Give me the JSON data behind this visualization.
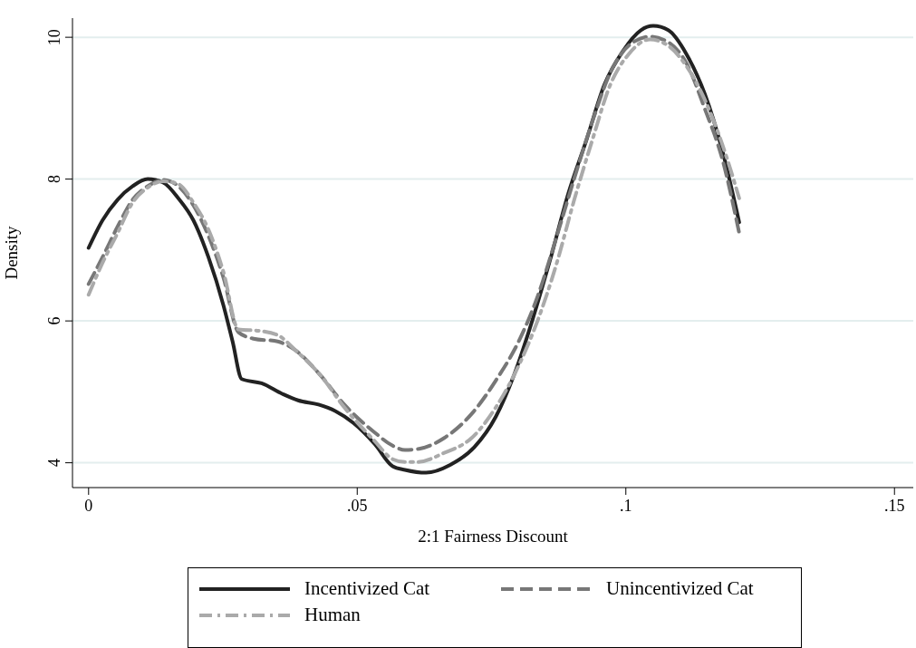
{
  "chart_data": {
    "type": "line",
    "xlabel": "2:1 Fairness Discount",
    "ylabel": "Density",
    "xlim": [
      -0.003,
      0.1535
    ],
    "ylim": [
      3.65,
      10.27
    ],
    "xticks": [
      {
        "value": 0,
        "label": "0"
      },
      {
        "value": 0.05,
        "label": ".05"
      },
      {
        "value": 0.1,
        "label": ".1"
      },
      {
        "value": 0.15,
        "label": ".15"
      }
    ],
    "yticks": [
      4,
      6,
      8,
      10
    ],
    "grid": "y",
    "legend": "bottom",
    "series": [
      {
        "name": "Incentivized Cat",
        "color": "#222222",
        "line_style": "solid",
        "x": [
          0,
          0.0026,
          0.0054,
          0.0082,
          0.011,
          0.0139,
          0.0167,
          0.0195,
          0.0223,
          0.0251,
          0.0268,
          0.0285,
          0.0322,
          0.0361,
          0.039,
          0.0428,
          0.0459,
          0.0493,
          0.0533,
          0.0566,
          0.0589,
          0.0628,
          0.0673,
          0.0718,
          0.0758,
          0.0792,
          0.0826,
          0.0859,
          0.0893,
          0.0927,
          0.096,
          0.0994,
          0.1028,
          0.1051,
          0.1079,
          0.1113,
          0.1147,
          0.118,
          0.1211
        ],
        "values": [
          7.03,
          7.42,
          7.71,
          7.9,
          8.0,
          7.95,
          7.73,
          7.42,
          6.9,
          6.22,
          5.71,
          5.18,
          5.12,
          4.97,
          4.88,
          4.82,
          4.73,
          4.56,
          4.26,
          3.95,
          3.9,
          3.86,
          3.97,
          4.22,
          4.65,
          5.24,
          6.01,
          6.86,
          7.8,
          8.56,
          9.33,
          9.8,
          10.1,
          10.16,
          10.1,
          9.76,
          9.2,
          8.39,
          7.39
        ]
      },
      {
        "name": "Unincentivized Cat",
        "color": "#777777",
        "line_style": "dashed",
        "x": [
          0,
          0.0026,
          0.0054,
          0.0082,
          0.011,
          0.0139,
          0.0167,
          0.0195,
          0.0223,
          0.0251,
          0.0279,
          0.0307,
          0.0352,
          0.0386,
          0.0431,
          0.0476,
          0.0532,
          0.0566,
          0.0589,
          0.0617,
          0.0662,
          0.0713,
          0.0758,
          0.0803,
          0.0836,
          0.087,
          0.0904,
          0.0938,
          0.0971,
          0.1005,
          0.1045,
          0.1079,
          0.1113,
          0.1147,
          0.118,
          0.1211
        ],
        "values": [
          6.52,
          6.9,
          7.33,
          7.71,
          7.9,
          7.99,
          7.9,
          7.63,
          7.2,
          6.61,
          5.84,
          5.75,
          5.71,
          5.58,
          5.24,
          4.82,
          4.43,
          4.24,
          4.18,
          4.2,
          4.35,
          4.69,
          5.16,
          5.75,
          6.35,
          7.16,
          8.01,
          8.82,
          9.5,
          9.88,
          10.01,
          9.93,
          9.63,
          8.99,
          8.27,
          7.24
        ]
      },
      {
        "name": "Human",
        "color": "#aaaaaa",
        "line_style": "dashdot",
        "x": [
          0,
          0.0026,
          0.0054,
          0.0082,
          0.011,
          0.0139,
          0.0167,
          0.0195,
          0.0223,
          0.0251,
          0.0279,
          0.0318,
          0.0352,
          0.0386,
          0.0431,
          0.0476,
          0.0532,
          0.0566,
          0.0589,
          0.0611,
          0.0662,
          0.0713,
          0.0758,
          0.0803,
          0.0836,
          0.087,
          0.0904,
          0.0938,
          0.0971,
          0.1005,
          0.1045,
          0.1079,
          0.1113,
          0.1147,
          0.118,
          0.1211
        ],
        "values": [
          6.37,
          6.82,
          7.24,
          7.67,
          7.88,
          7.97,
          7.93,
          7.67,
          7.29,
          6.69,
          5.88,
          5.86,
          5.8,
          5.58,
          5.24,
          4.78,
          4.31,
          4.05,
          4.01,
          4.01,
          4.14,
          4.35,
          4.78,
          5.41,
          6.01,
          6.78,
          7.71,
          8.56,
          9.33,
          9.76,
          9.97,
          9.88,
          9.59,
          9.12,
          8.48,
          7.73
        ]
      }
    ]
  }
}
